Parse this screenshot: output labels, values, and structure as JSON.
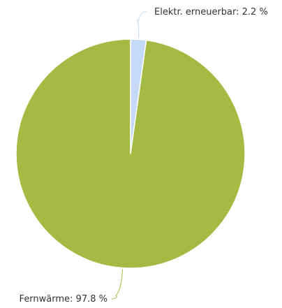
{
  "chart_data": {
    "type": "pie",
    "title": "",
    "slices": [
      {
        "name": "Elektr. erneuerbar",
        "value": 2.2,
        "label": "Elektr. erneuerbar: 2.2 %",
        "color": "#c6d9f7"
      },
      {
        "name": "Fernwärme",
        "value": 97.8,
        "label": "Fernwärme: 97.8 %",
        "color": "#a4ba42"
      }
    ]
  }
}
